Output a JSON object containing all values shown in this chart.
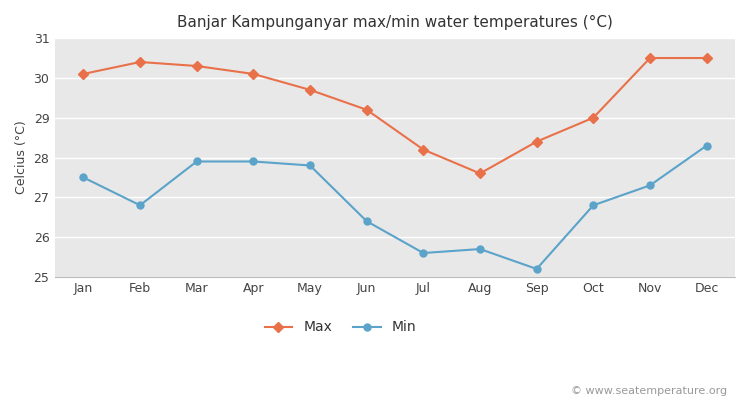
{
  "title": "Banjar Kampunganyar max/min water temperatures (°C)",
  "ylabel": "Celcius (°C)",
  "months": [
    "Jan",
    "Feb",
    "Mar",
    "Apr",
    "May",
    "Jun",
    "Jul",
    "Aug",
    "Sep",
    "Oct",
    "Nov",
    "Dec"
  ],
  "max_values": [
    30.1,
    30.4,
    30.3,
    30.1,
    29.7,
    29.2,
    28.2,
    27.6,
    28.4,
    29.0,
    30.5,
    30.5
  ],
  "min_values": [
    27.5,
    26.8,
    27.9,
    27.9,
    27.8,
    26.4,
    25.6,
    25.7,
    25.2,
    26.8,
    27.3,
    28.3
  ],
  "max_color": "#e8714a",
  "min_color": "#5ba3c9",
  "bg_color": "#ffffff",
  "plot_bg_color": "#e8e8e8",
  "ylim": [
    25,
    31
  ],
  "yticks": [
    25,
    26,
    27,
    28,
    29,
    30,
    31
  ],
  "legend_labels": [
    "Max",
    "Min"
  ],
  "watermark": "© www.seatemperature.org",
  "title_fontsize": 11,
  "label_fontsize": 9,
  "tick_fontsize": 9,
  "watermark_fontsize": 8
}
